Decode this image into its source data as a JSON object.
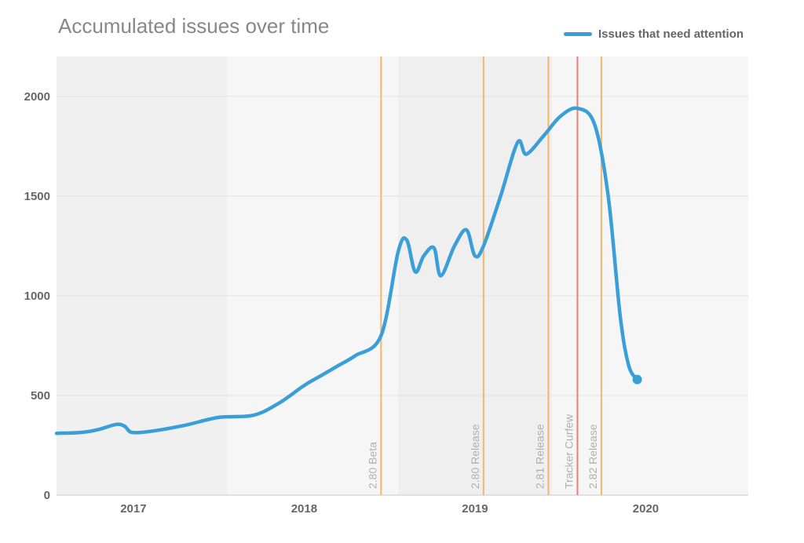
{
  "chart_data": {
    "type": "line",
    "title": "Accumulated issues over time",
    "xlabel": "",
    "ylabel": "",
    "xlim": [
      2016.55,
      2020.6
    ],
    "ylim": [
      0,
      2200
    ],
    "x_ticks": [
      2017,
      2018,
      2019,
      2020
    ],
    "x_tick_labels": [
      "2017",
      "2018",
      "2019",
      "2020"
    ],
    "y_ticks": [
      0,
      500,
      1000,
      1500,
      2000
    ],
    "y_tick_labels": [
      "0",
      "500",
      "1000",
      "1500",
      "2000"
    ],
    "legend": {
      "position": "top-right",
      "entries": [
        "Issues that need attention"
      ]
    },
    "grid": {
      "horizontal": true,
      "vertical": false
    },
    "shaded_bands": [
      {
        "x": [
          2016.55,
          2017.55
        ],
        "color": "#f0f0f0"
      },
      {
        "x": [
          2017.55,
          2018.45
        ],
        "color": "#f6f6f6"
      },
      {
        "x": [
          2018.45,
          2018.55
        ],
        "color": "#f6f6f6"
      },
      {
        "x": [
          2018.55,
          2019.45
        ],
        "color": "#efefef"
      },
      {
        "x": [
          2019.45,
          2020.6
        ],
        "color": "#f6f6f6"
      }
    ],
    "series": [
      {
        "name": "Issues that need attention",
        "color": "#3a9fd8",
        "x": [
          2016.55,
          2016.7,
          2016.8,
          2016.9,
          2016.95,
          2016.99,
          2017.1,
          2017.3,
          2017.5,
          2017.7,
          2017.85,
          2018.0,
          2018.1,
          2018.2,
          2018.3,
          2018.45,
          2018.55,
          2018.6,
          2018.65,
          2018.7,
          2018.76,
          2018.8,
          2018.88,
          2018.95,
          2019.0,
          2019.05,
          2019.15,
          2019.25,
          2019.3,
          2019.4,
          2019.5,
          2019.6,
          2019.7,
          2019.78,
          2019.85,
          2019.9,
          2019.95
        ],
        "y": [
          310,
          315,
          330,
          355,
          345,
          315,
          320,
          350,
          390,
          400,
          460,
          550,
          600,
          650,
          700,
          800,
          1220,
          1280,
          1120,
          1200,
          1240,
          1100,
          1250,
          1330,
          1200,
          1250,
          1500,
          1770,
          1710,
          1800,
          1900,
          1940,
          1860,
          1500,
          900,
          650,
          580
        ]
      }
    ],
    "annotations": [
      {
        "x": 2018.45,
        "label": "2.80 Beta",
        "color": "#f5b56a"
      },
      {
        "x": 2019.05,
        "label": "2.80 Release",
        "color": "#f5b56a"
      },
      {
        "x": 2019.43,
        "label": "2.81 Release",
        "color": "#f5b56a"
      },
      {
        "x": 2019.6,
        "label": "Tracker Curfew",
        "color": "#e8806a"
      },
      {
        "x": 2019.74,
        "label": "2.82 Release",
        "color": "#f5b56a"
      }
    ]
  }
}
